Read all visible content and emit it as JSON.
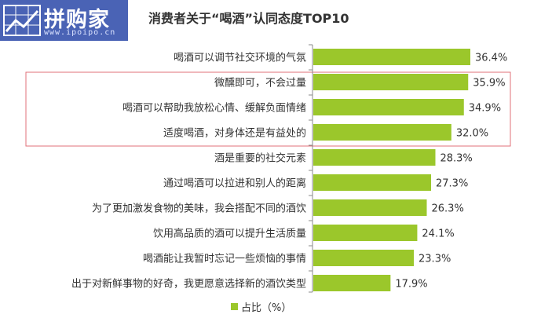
{
  "logo": {
    "name": "拼购家",
    "url": "www.ipoipo.cn"
  },
  "chart_data": {
    "type": "bar",
    "orientation": "horizontal",
    "title": "消费者关于“喝酒”认同态度TOP10",
    "categories": [
      "喝酒可以调节社交环境的气氛",
      "微醺即可，不会过量",
      "喝酒可以帮助我放松心情、缓解负面情绪",
      "适度喝酒，对身体还是有益处的",
      "酒是重要的社交元素",
      "通过喝酒可以拉进和别人的距离",
      "为了更加激发食物的美味，我会搭配不同的酒饮",
      "饮用高品质的酒可以提升生活质量",
      "喝酒能让我暂时忘记一些烦恼的事情",
      "出于对新鲜事物的好奇，我更愿意选择新的酒饮类型"
    ],
    "values": [
      36.4,
      35.9,
      34.9,
      32.0,
      28.3,
      27.3,
      26.3,
      24.1,
      23.3,
      17.9
    ],
    "value_labels": [
      "36.4%",
      "35.9%",
      "34.9%",
      "32.0%",
      "28.3%",
      "27.3%",
      "26.3%",
      "24.1%",
      "23.3%",
      "17.9%"
    ],
    "legend": "占比（%）",
    "highlighted_rows": [
      1,
      2,
      3
    ],
    "colors": {
      "bar": "#9bc72b",
      "highlight_border": "#e0707a",
      "axis": "#888888"
    }
  }
}
